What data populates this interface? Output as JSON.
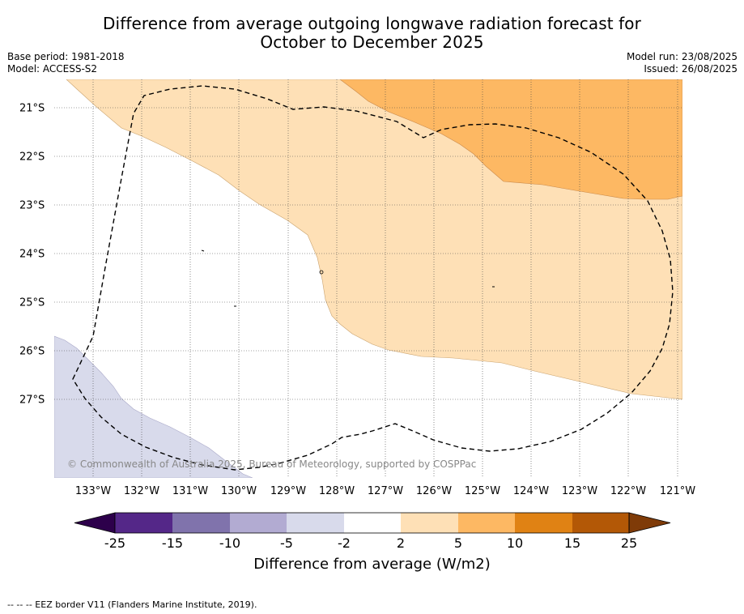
{
  "title_line1": "Difference from average outgoing longwave radiation forecast for",
  "title_line2": "October to December 2025",
  "base_period": "Base period: 1981-2018",
  "model": "Model: ACCESS-S2",
  "model_run": "Model run: 23/08/2025",
  "issued": "Issued: 26/08/2025",
  "copyright": "© Commonwealth of Australia 2025, Bureau of Meteorology, supported by COSPPac",
  "lon_labels": [
    "133°W",
    "132°W",
    "131°W",
    "130°W",
    "129°W",
    "128°W",
    "127°W",
    "126°W",
    "125°W",
    "124°W",
    "123°W",
    "122°W",
    "121°W"
  ],
  "lat_labels": [
    "21°S",
    "22°S",
    "23°S",
    "24°S",
    "25°S",
    "26°S",
    "27°S"
  ],
  "colorbar": {
    "ticks": [
      "-25",
      "-15",
      "-10",
      "-5",
      "-2",
      "2",
      "5",
      "10",
      "15",
      "25"
    ],
    "label": "Difference from average (W/m2)",
    "colors": [
      "#2d004b",
      "#542788",
      "#8073ac",
      "#b2abd2",
      "#d8daeb",
      "#ffffff",
      "#fee0b6",
      "#fdb863",
      "#e08214",
      "#b35806",
      "#7f3b08"
    ]
  },
  "footnote": "--  --  -- EEZ border V11 (Flanders Marine Institute, 2019)."
}
